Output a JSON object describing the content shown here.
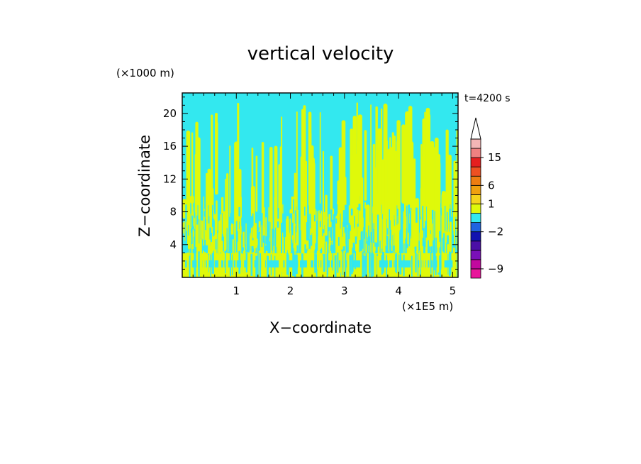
{
  "chart_data": {
    "type": "heatmap",
    "title": "vertical velocity",
    "xlabel": "X−coordinate",
    "ylabel": "Z−coordinate",
    "x_scale_label": "(×1E5 m)",
    "y_scale_label": "(×1000 m)",
    "time_label": "t=4200 s",
    "xlim": [
      0,
      5.1
    ],
    "ylim": [
      0,
      22.5
    ],
    "x_ticks": [
      {
        "value": 1,
        "label": "1"
      },
      {
        "value": 2,
        "label": "2"
      },
      {
        "value": 3,
        "label": "3"
      },
      {
        "value": 4,
        "label": "4"
      },
      {
        "value": 5,
        "label": "5"
      }
    ],
    "y_ticks": [
      {
        "value": 4,
        "label": "4"
      },
      {
        "value": 8,
        "label": "8"
      },
      {
        "value": 12,
        "label": "12"
      },
      {
        "value": 16,
        "label": "16"
      },
      {
        "value": 20,
        "label": "20"
      }
    ],
    "field_colors": {
      "negative_small": "#33e8ef",
      "positive_small": "#dff90a"
    },
    "colorbar": {
      "levels": [
        {
          "color": "#e8179b"
        },
        {
          "color": "#c2089e"
        },
        {
          "color": "#7a10b8"
        },
        {
          "color": "#4b0fa6"
        },
        {
          "color": "#1212b0"
        },
        {
          "color": "#1f63e0"
        },
        {
          "color": "#33e8ef"
        },
        {
          "color": "#dff90a"
        },
        {
          "color": "#f5d41c"
        },
        {
          "color": "#f0a010"
        },
        {
          "color": "#ee7d12"
        },
        {
          "color": "#ee5022"
        },
        {
          "color": "#e51f1f"
        },
        {
          "color": "#f08080"
        },
        {
          "color": "#f4b6b6"
        }
      ],
      "labels": [
        {
          "text": "15",
          "level": 13
        },
        {
          "text": "6",
          "level": 10
        },
        {
          "text": "1",
          "level": 8
        },
        {
          "text": "−2",
          "level": 5
        },
        {
          "text": "−9",
          "level": 1
        }
      ]
    }
  }
}
